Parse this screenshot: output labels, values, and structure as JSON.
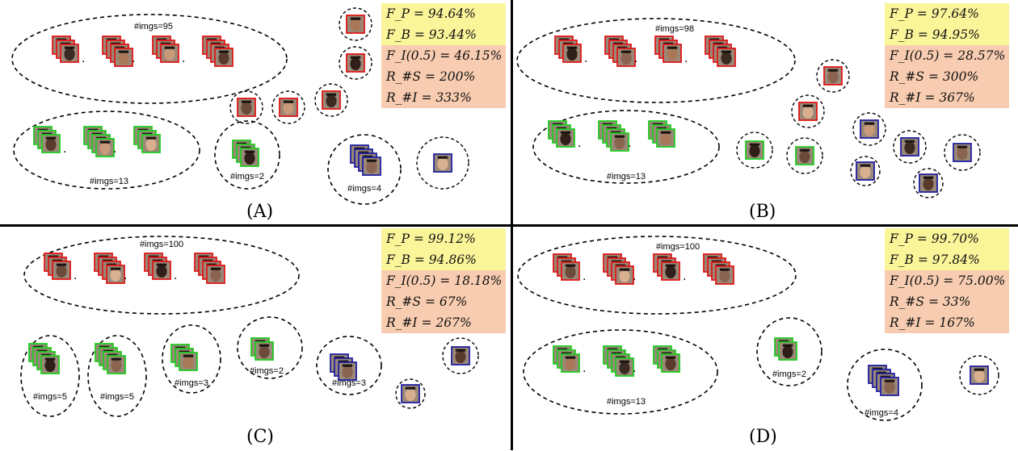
{
  "panels": [
    {
      "caption": "(A)",
      "stats_yellow": [
        "F_P = 94.64%",
        "F_B = 93.44%"
      ],
      "stats_orange": [
        "F_I(0.5) = 46.15%",
        "R_#S = 200%",
        "R_#I = 333%"
      ],
      "labels": [
        "#imgs=95",
        "#imgs=13",
        "#imgs=2",
        "#imgs=4"
      ]
    },
    {
      "caption": "(B)",
      "stats_yellow": [
        "F_P = 97.64%",
        "F_B = 94.95%"
      ],
      "stats_orange": [
        "F_I(0.5) = 28.57%",
        "R_#S = 300%",
        "R_#I = 367%"
      ],
      "labels": [
        "#imgs=98",
        "#imgs=13"
      ]
    },
    {
      "caption": "(C)",
      "stats_yellow": [
        "F_P = 99.12%",
        "F_B = 94.86%"
      ],
      "stats_orange": [
        "F_I(0.5) = 18.18%",
        "R_#S = 67%",
        "R_#I = 267%"
      ],
      "labels": [
        "#imgs=100",
        "#imgs=5",
        "#imgs=5",
        "#imgs=3",
        "#imgs=2",
        "#imgs=3"
      ]
    },
    {
      "caption": "(D)",
      "stats_yellow": [
        "F_P = 99.70%",
        "F_B = 97.84%"
      ],
      "stats_orange": [
        "F_I(0.5) = 75.00%",
        "R_#S = 33%",
        "R_#I = 167%"
      ],
      "labels": [
        "#imgs=100",
        "#imgs=13",
        "#imgs=2",
        "#imgs=4"
      ]
    }
  ],
  "colors": {
    "red_cluster": "#e01818",
    "green_cluster": "#22cc22",
    "blue_cluster": "#2020a0",
    "stats_top_bg": "#fbf59a",
    "stats_bottom_bg": "#f7ccb0"
  }
}
